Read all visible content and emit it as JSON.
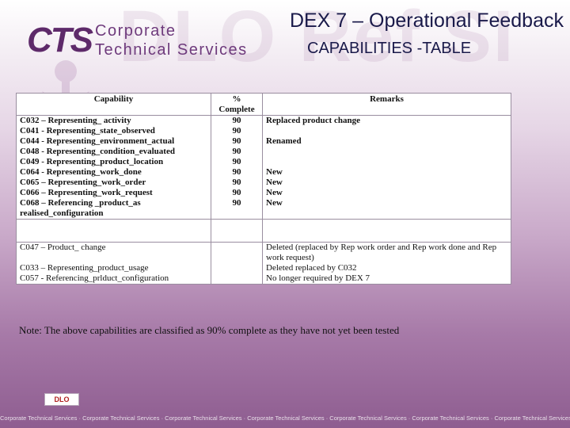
{
  "header": {
    "watermark_text": "DLO Ref SI",
    "logo": {
      "mark": "CTS",
      "line1": "Corporate",
      "line2": "Technical Services"
    },
    "title": "DEX 7 – Operational Feedback",
    "subtitle": "CAPABILITIES -TABLE"
  },
  "table": {
    "columns": [
      "Capability",
      "% Complete",
      "Remarks"
    ],
    "group1": [
      {
        "capability": "C032 – Representing_ activity",
        "complete": "90",
        "remarks": "Replaced product change"
      },
      {
        "capability": "C041 - Representing_state_observed",
        "complete": "90",
        "remarks": ""
      },
      {
        "capability": "C044 - Representing_environment_actual",
        "complete": "90",
        "remarks": "Renamed"
      },
      {
        "capability": "C048 - Representing_condition_evaluated",
        "complete": "90",
        "remarks": ""
      },
      {
        "capability": "C049 - Representing_product_location",
        "complete": "90",
        "remarks": ""
      },
      {
        "capability": "C064 - Representing_work_done",
        "complete": "90",
        "remarks": "New"
      },
      {
        "capability": "C065 – Representing_work_order",
        "complete": "90",
        "remarks": "New"
      },
      {
        "capability": "C066 – Representing_work_request",
        "complete": "90",
        "remarks": "New"
      },
      {
        "capability": "C068 – Referencing _product_as realised_configuration",
        "complete": "90",
        "remarks": "New"
      }
    ],
    "group2": [
      {
        "capability": "C047 – Product_ change",
        "complete": "",
        "remarks": "Deleted (replaced by Rep work order and Rep work done and Rep work request)"
      },
      {
        "capability": "C033 – Representing_product_usage",
        "complete": "",
        "remarks": "Deleted replaced by C032"
      },
      {
        "capability": "C057 - Referencing_prlduct_configuration",
        "complete": "",
        "remarks": "No longer required by DEX 7"
      }
    ]
  },
  "note": "Note: The above capabilities are classified as 90% complete as they have not yet been tested",
  "footer": {
    "badge": "DLO",
    "repeat_text": "Corporate Technical Services · Corporate Technical Services · Corporate Technical Services · Corporate Technical Services · Corporate Technical Services · Corporate Technical Services · Corporate Technical Services"
  }
}
